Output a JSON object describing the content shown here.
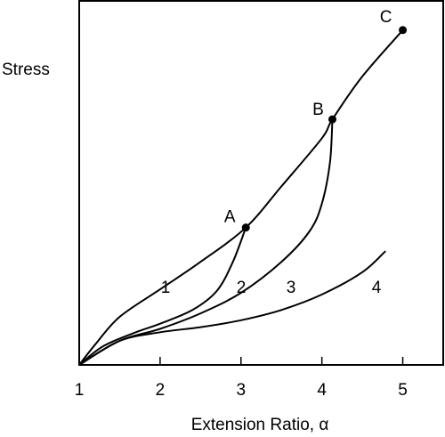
{
  "chart_data": {
    "type": "line",
    "title": "",
    "xlabel": "Extension Ratio, α",
    "ylabel": "Stress",
    "xlim": [
      1,
      5.5
    ],
    "ylim": [
      0,
      10.6
    ],
    "x_ticks": [
      "1",
      "2",
      "3",
      "4",
      "5"
    ],
    "grid": false,
    "legend": "none",
    "series": [
      {
        "name": "1",
        "x": [
          1.0,
          1.2,
          1.5,
          2.0,
          2.5,
          3.06,
          3.5,
          4.0,
          4.13,
          4.5,
          5.0
        ],
        "y": [
          0.0,
          0.6,
          1.4,
          2.2,
          3.0,
          4.0,
          5.2,
          6.6,
          7.15,
          8.4,
          9.75
        ]
      },
      {
        "name": "2",
        "x": [
          1.0,
          1.3,
          1.7,
          2.0,
          2.4,
          2.7,
          2.9,
          3.06
        ],
        "y": [
          0.0,
          0.55,
          0.95,
          1.2,
          1.6,
          2.15,
          3.0,
          4.0
        ]
      },
      {
        "name": "3",
        "x": [
          1.0,
          1.5,
          2.0,
          2.5,
          3.0,
          3.5,
          3.85,
          4.0,
          4.1,
          4.13
        ],
        "y": [
          0.0,
          0.7,
          1.05,
          1.5,
          2.1,
          3.0,
          3.9,
          4.7,
          5.9,
          7.15
        ]
      },
      {
        "name": "4",
        "x": [
          1.0,
          1.5,
          2.0,
          2.5,
          3.0,
          3.5,
          4.0,
          4.5,
          4.78
        ],
        "y": [
          0.0,
          0.7,
          0.95,
          1.1,
          1.3,
          1.6,
          2.05,
          2.7,
          3.3
        ]
      }
    ],
    "points": [
      {
        "label": "A",
        "x": 3.06,
        "y": 4.0
      },
      {
        "label": "B",
        "x": 4.13,
        "y": 7.15
      },
      {
        "label": "C",
        "x": 5.0,
        "y": 9.75
      }
    ]
  }
}
